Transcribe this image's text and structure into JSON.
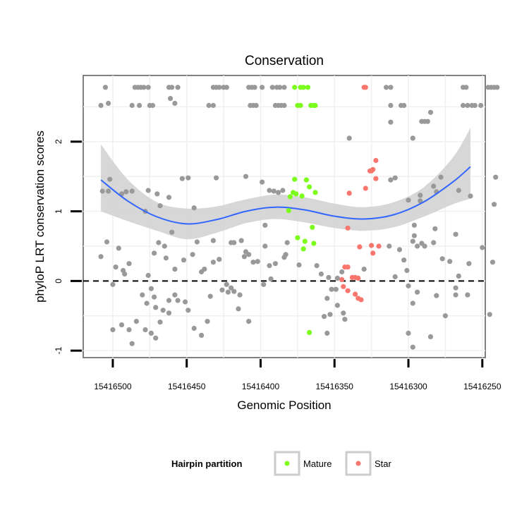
{
  "chart_data": {
    "type": "scatter",
    "title": "Conservation",
    "xlabel": "Genomic Position",
    "ylabel": "phyloP LRT conservation scores",
    "x_reversed": true,
    "xlim": [
      15416520,
      15416248
    ],
    "ylim": [
      -1.1,
      2.95
    ],
    "x_ticks": [
      15416500,
      15416450,
      15416400,
      15416350,
      15416300,
      15416250
    ],
    "x_tick_labels": [
      "15416500",
      "15416450",
      "15416400",
      "15416350",
      "15416300",
      "15416250"
    ],
    "y_ticks": [
      -1,
      0,
      1,
      2
    ],
    "y_tick_labels": [
      "-1",
      "0",
      "1",
      "2"
    ],
    "reference_line": {
      "y": 0,
      "style": "dashed",
      "color": "#000000"
    },
    "grid": true,
    "legend": {
      "title": "Hairpin partition",
      "position": "bottom",
      "entries": [
        {
          "label": "Mature",
          "color": "#7cfc1c"
        },
        {
          "label": "Star",
          "color": "#f8766d"
        }
      ]
    },
    "colors": {
      "other": "#999999",
      "mature": "#7cfc1c",
      "star": "#f8766d",
      "smooth_line": "#3366ff",
      "confidence_band": "#d3d3d3",
      "panel_background": "#ffffff",
      "grid": "#f0f0f0"
    },
    "smooth": {
      "x": [
        15416508,
        15416490,
        15416470,
        15416450,
        15416430,
        15416410,
        15416390,
        15416370,
        15416350,
        15416330,
        15416310,
        15416290,
        15416270,
        15416258
      ],
      "y": [
        1.45,
        1.15,
        0.92,
        0.82,
        0.88,
        1.0,
        1.06,
        1.02,
        0.93,
        0.89,
        0.95,
        1.13,
        1.42,
        1.64
      ],
      "lower": [
        1.0,
        0.86,
        0.72,
        0.6,
        0.69,
        0.83,
        0.89,
        0.84,
        0.76,
        0.72,
        0.77,
        0.92,
        1.1,
        1.18
      ],
      "upper": [
        1.96,
        1.46,
        1.13,
        1.04,
        1.07,
        1.17,
        1.24,
        1.2,
        1.11,
        1.06,
        1.13,
        1.34,
        1.77,
        2.2
      ]
    },
    "series": [
      {
        "name": "Mature",
        "color": "#7cfc1c",
        "points": [
          [
            15416377,
            2.78
          ],
          [
            15416373,
            2.78
          ],
          [
            15416371,
            2.78
          ],
          [
            15416368,
            2.78
          ],
          [
            15416375,
            2.52
          ],
          [
            15416373,
            2.52
          ],
          [
            15416366,
            2.52
          ],
          [
            15416364,
            2.52
          ],
          [
            15416363,
            2.52
          ],
          [
            15416377,
            1.46
          ],
          [
            15416378,
            1.27
          ],
          [
            15416376,
            1.25
          ],
          [
            15416380,
            1.21
          ],
          [
            15416372,
            1.22
          ],
          [
            15416369,
            1.45
          ],
          [
            15416367,
            1.35
          ],
          [
            15416363,
            1.27
          ],
          [
            15416381,
            1.01
          ],
          [
            15416365,
            0.77
          ],
          [
            15416375,
            0.62
          ],
          [
            15416370,
            0.57
          ],
          [
            15416364,
            0.54
          ],
          [
            15416371,
            0.46
          ],
          [
            15416367,
            -0.74
          ]
        ]
      },
      {
        "name": "Star",
        "color": "#f8766d",
        "points": [
          [
            15416330,
            2.78
          ],
          [
            15416329,
            2.78
          ],
          [
            15416322,
            1.73
          ],
          [
            15416324,
            1.6
          ],
          [
            15416326,
            1.58
          ],
          [
            15416325,
            1.58
          ],
          [
            15416322,
            1.47
          ],
          [
            15416329,
            1.33
          ],
          [
            15416340,
            1.26
          ],
          [
            15416341,
            0.76
          ],
          [
            15416325,
            0.51
          ],
          [
            15416320,
            0.5
          ],
          [
            15416333,
            0.49
          ],
          [
            15416324,
            0.4
          ],
          [
            15416341,
            0.2
          ],
          [
            15416343,
            0.2
          ],
          [
            15416338,
            0.05
          ],
          [
            15416336,
            0.05
          ],
          [
            15416334,
            0.04
          ],
          [
            15416345,
            0.02
          ],
          [
            15416344,
            -0.08
          ],
          [
            15416341,
            -0.14
          ],
          [
            15416336,
            -0.19
          ],
          [
            15416334,
            -0.25
          ],
          [
            15416332,
            -0.27
          ]
        ]
      },
      {
        "name": "",
        "color": "#999999",
        "points": [
          [
            15416505,
            2.78
          ],
          [
            15416485,
            2.78
          ],
          [
            15416483,
            2.78
          ],
          [
            15416481,
            2.78
          ],
          [
            15416479,
            2.78
          ],
          [
            15416476,
            2.78
          ],
          [
            15416462,
            2.78
          ],
          [
            15416460,
            2.78
          ],
          [
            15416456,
            2.78
          ],
          [
            15416432,
            2.78
          ],
          [
            15416430,
            2.78
          ],
          [
            15416428,
            2.78
          ],
          [
            15416425,
            2.78
          ],
          [
            15416423,
            2.78
          ],
          [
            15416408,
            2.78
          ],
          [
            15416406,
            2.78
          ],
          [
            15416404,
            2.78
          ],
          [
            15416399,
            2.78
          ],
          [
            15416392,
            2.78
          ],
          [
            15416389,
            2.78
          ],
          [
            15416387,
            2.78
          ],
          [
            15416384,
            2.78
          ],
          [
            15416315,
            2.78
          ],
          [
            15416312,
            2.78
          ],
          [
            15416263,
            2.78
          ],
          [
            15416261,
            2.78
          ],
          [
            15416246,
            2.78
          ],
          [
            15416244,
            2.78
          ],
          [
            15416242,
            2.78
          ],
          [
            15416240,
            2.78
          ],
          [
            15416508,
            2.52
          ],
          [
            15416503,
            2.55
          ],
          [
            15416487,
            2.52
          ],
          [
            15416482,
            2.52
          ],
          [
            15416475,
            2.52
          ],
          [
            15416473,
            2.52
          ],
          [
            15416461,
            2.62
          ],
          [
            15416458,
            2.55
          ],
          [
            15416435,
            2.52
          ],
          [
            15416432,
            2.52
          ],
          [
            15416407,
            2.52
          ],
          [
            15416405,
            2.52
          ],
          [
            15416403,
            2.52
          ],
          [
            15416390,
            2.52
          ],
          [
            15416388,
            2.52
          ],
          [
            15416386,
            2.52
          ],
          [
            15416384,
            2.52
          ],
          [
            15416312,
            2.52
          ],
          [
            15416305,
            2.52
          ],
          [
            15416303,
            2.52
          ],
          [
            15416263,
            2.52
          ],
          [
            15416260,
            2.52
          ],
          [
            15416257,
            2.52
          ],
          [
            15416255,
            2.52
          ],
          [
            15416251,
            2.52
          ],
          [
            15416340,
            2.05
          ],
          [
            15416312,
            2.28
          ],
          [
            15416291,
            2.29
          ],
          [
            15416289,
            2.29
          ],
          [
            15416287,
            2.29
          ],
          [
            15416285,
            2.42
          ],
          [
            15416297,
            2.05
          ],
          [
            15416278,
            1.49
          ],
          [
            15416241,
            1.49
          ],
          [
            15416312,
            1.45
          ],
          [
            15416309,
            1.48
          ],
          [
            15416502,
            1.46
          ],
          [
            15416503,
            1.29
          ],
          [
            15416507,
            1.29
          ],
          [
            15416491,
            1.28
          ],
          [
            15416487,
            1.29
          ],
          [
            15416494,
            1.25
          ],
          [
            15416476,
            1.3
          ],
          [
            15416470,
            1.25
          ],
          [
            15416462,
            1.2
          ],
          [
            15416453,
            1.47
          ],
          [
            15416449,
            1.48
          ],
          [
            15416430,
            1.48
          ],
          [
            15416410,
            1.5
          ],
          [
            15416399,
            1.42
          ],
          [
            15416394,
            1.3
          ],
          [
            15416391,
            1.29
          ],
          [
            15416388,
            1.27
          ],
          [
            15416385,
            1.3
          ],
          [
            15416283,
            1.36
          ],
          [
            15416292,
            1.23
          ],
          [
            15416300,
            1.16
          ],
          [
            15416292,
            1.15
          ],
          [
            15416281,
            1.28
          ],
          [
            15416266,
            1.3
          ],
          [
            15416258,
            1.22
          ],
          [
            15416242,
            1.1
          ],
          [
            15416478,
            1.0
          ],
          [
            15416468,
            1.08
          ],
          [
            15416445,
            1.05
          ],
          [
            15416397,
            0.8
          ],
          [
            15416296,
            0.8
          ],
          [
            15416296,
            0.65
          ],
          [
            15416282,
            0.75
          ],
          [
            15416268,
            0.67
          ],
          [
            15416291,
            0.54
          ],
          [
            15416297,
            0.57
          ],
          [
            15416504,
            0.56
          ],
          [
            15416508,
            0.35
          ],
          [
            15416498,
            0.2
          ],
          [
            15416496,
            0.47
          ],
          [
            15416493,
            0.15
          ],
          [
            15416489,
            0.25
          ],
          [
            15416472,
            0.4
          ],
          [
            15416469,
            0.55
          ],
          [
            15416465,
            0.5
          ],
          [
            15416464,
            0.33
          ],
          [
            15416458,
            0.17
          ],
          [
            15416452,
            0.3
          ],
          [
            15416446,
            0.38
          ],
          [
            15416443,
            0.56
          ],
          [
            15416440,
            0.13
          ],
          [
            15416432,
            0.58
          ],
          [
            15416420,
            0.55
          ],
          [
            15416418,
            0.55
          ],
          [
            15416413,
            0.58
          ],
          [
            15416411,
            0.35
          ],
          [
            15416408,
            0.38
          ],
          [
            15416405,
            0.27
          ],
          [
            15416402,
            0.28
          ],
          [
            15416397,
            0.5
          ],
          [
            15416394,
            0.22
          ],
          [
            15416390,
            0.25
          ],
          [
            15416384,
            0.34
          ],
          [
            15416383,
            0.38
          ],
          [
            15416382,
            0.55
          ],
          [
            15416362,
            0.22
          ],
          [
            15416359,
            0.1
          ],
          [
            15416354,
            0.05
          ],
          [
            15416348,
            0.04
          ],
          [
            15416303,
            0.3
          ],
          [
            15416301,
            0.15
          ],
          [
            15416294,
            0.5
          ],
          [
            15416289,
            0.5
          ],
          [
            15416277,
            0.32
          ],
          [
            15416272,
            0.28
          ],
          [
            15416266,
            0.07
          ],
          [
            15416259,
            0.25
          ],
          [
            15416250,
            0.48
          ],
          [
            15416243,
            0.27
          ],
          [
            15416500,
            -0.05
          ],
          [
            15416480,
            -0.2
          ],
          [
            15416477,
            -0.32
          ],
          [
            15416476,
            0.08
          ],
          [
            15416474,
            -0.11
          ],
          [
            15416472,
            -0.23
          ],
          [
            15416471,
            -0.38
          ],
          [
            15416468,
            -0.59
          ],
          [
            15416466,
            -0.42
          ],
          [
            15416462,
            -0.46
          ],
          [
            15416458,
            -0.2
          ],
          [
            15416456,
            -0.28
          ],
          [
            15416449,
            -0.42
          ],
          [
            15416434,
            -0.22
          ],
          [
            15416426,
            -0.13
          ],
          [
            15416422,
            -0.16
          ],
          [
            15416420,
            -0.1
          ],
          [
            15416418,
            -0.15
          ],
          [
            15416415,
            -0.4
          ],
          [
            15416414,
            -0.2
          ],
          [
            15416408,
            -0.58
          ],
          [
            15416398,
            -0.05
          ],
          [
            15416355,
            -0.25
          ],
          [
            15416352,
            -0.12
          ],
          [
            15416349,
            -0.12
          ],
          [
            15416348,
            -0.35
          ],
          [
            15416344,
            -0.46
          ],
          [
            15416343,
            -0.55
          ],
          [
            15416357,
            -0.51
          ],
          [
            15416300,
            -0.07
          ],
          [
            15416297,
            -0.32
          ],
          [
            15416294,
            -0.16
          ],
          [
            15416285,
            -0.8
          ],
          [
            15416281,
            -0.21
          ],
          [
            15416268,
            -0.1
          ],
          [
            15416260,
            -0.2
          ],
          [
            15416245,
            -0.48
          ],
          [
            15416500,
            -0.7
          ],
          [
            15416494,
            -0.63
          ],
          [
            15416489,
            -0.7
          ],
          [
            15416487,
            -0.9
          ],
          [
            15416484,
            -0.58
          ],
          [
            15416478,
            -0.7
          ],
          [
            15416474,
            -0.75
          ],
          [
            15416471,
            -0.82
          ],
          [
            15416440,
            -0.78
          ],
          [
            15416355,
            -0.75
          ],
          [
            15416353,
            -0.48
          ],
          [
            15416300,
            -0.75
          ],
          [
            15416297,
            -0.95
          ],
          [
            15416275,
            -0.5
          ],
          [
            15416268,
            -0.2
          ],
          [
            15416462,
            -0.28
          ],
          [
            15416451,
            -0.3
          ],
          [
            15416445,
            -0.68
          ],
          [
            15416436,
            -0.58
          ],
          [
            15416423,
            -0.05
          ],
          [
            15416393,
            0.03
          ],
          [
            15416374,
            0.23
          ],
          [
            15416345,
            0.13
          ],
          [
            15416330,
            0.17
          ],
          [
            15416313,
            0.5
          ],
          [
            15416309,
            0.06
          ],
          [
            15416306,
            0.45
          ],
          [
            15416283,
            0.55
          ],
          [
            15416492,
            0.1
          ],
          [
            15416460,
            0.7
          ],
          [
            15416410,
            0.42
          ],
          [
            15416438,
            0.17
          ],
          [
            15416432,
            0.27
          ],
          [
            15416428,
            0.31
          ]
        ]
      }
    ]
  }
}
